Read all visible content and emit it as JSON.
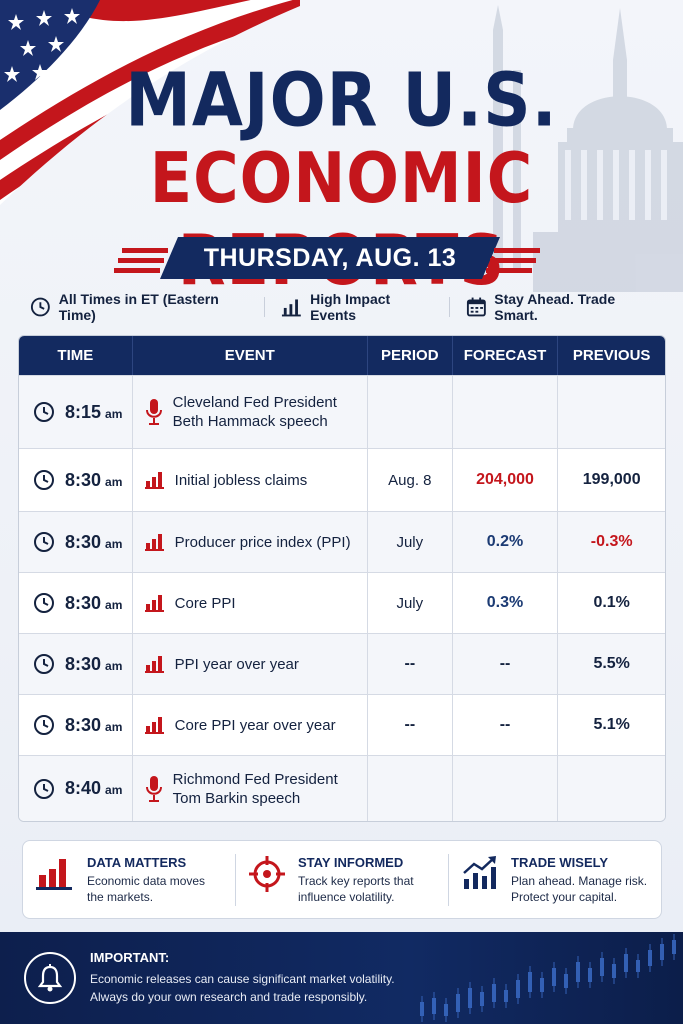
{
  "header": {
    "title_line1": "MAJOR U.S.",
    "title_line2": "ECONOMIC REPORTS",
    "date": "THURSDAY, AUG. 13"
  },
  "info_bar": [
    {
      "icon": "clock-icon",
      "label": "All Times in ET (Eastern Time)"
    },
    {
      "icon": "bar-chart-icon",
      "label": "High Impact Events"
    },
    {
      "icon": "calendar-icon",
      "label": "Stay Ahead. Trade Smart."
    }
  ],
  "table": {
    "headers": [
      "TIME",
      "EVENT",
      "PERIOD",
      "FORECAST",
      "PREVIOUS"
    ],
    "rows": [
      {
        "time": "8:15",
        "ampm": "am",
        "icon": "microphone-icon",
        "event_line1": "Cleveland Fed President",
        "event_line2": "Beth Hammack speech",
        "period": "",
        "forecast": "",
        "previous": ""
      },
      {
        "time": "8:30",
        "ampm": "am",
        "icon": "bar-chart-icon",
        "event_line1": "Initial jobless claims",
        "event_line2": "",
        "period": "Aug. 8",
        "forecast": "204,000",
        "previous": "199,000"
      },
      {
        "time": "8:30",
        "ampm": "am",
        "icon": "bar-chart-icon",
        "event_line1": "Producer price index (PPI)",
        "event_line2": "",
        "period": "July",
        "forecast": "0.2%",
        "previous": "-0.3%"
      },
      {
        "time": "8:30",
        "ampm": "am",
        "icon": "bar-chart-icon",
        "event_line1": "Core PPI",
        "event_line2": "",
        "period": "July",
        "forecast": "0.3%",
        "previous": "0.1%"
      },
      {
        "time": "8:30",
        "ampm": "am",
        "icon": "bar-chart-icon",
        "event_line1": "PPI year over year",
        "event_line2": "",
        "period": "--",
        "forecast": "--",
        "previous": "5.5%"
      },
      {
        "time": "8:30",
        "ampm": "am",
        "icon": "bar-chart-icon",
        "event_line1": "Core PPI year over year",
        "event_line2": "",
        "period": "--",
        "forecast": "--",
        "previous": "5.1%"
      },
      {
        "time": "8:40",
        "ampm": "am",
        "icon": "microphone-icon",
        "event_line1": "Richmond Fed President",
        "event_line2": "Tom Barkin speech",
        "period": "",
        "forecast": "",
        "previous": ""
      }
    ]
  },
  "cards": [
    {
      "icon": "bar-chart-icon",
      "title": "DATA MATTERS",
      "line1": "Economic data moves",
      "line2": "the markets."
    },
    {
      "icon": "target-icon",
      "title": "STAY INFORMED",
      "line1": "Track key reports that",
      "line2": "influence volatility."
    },
    {
      "icon": "trend-up-icon",
      "title": "TRADE WISELY",
      "line1": "Plan ahead. Manage risk.",
      "line2": "Protect your capital."
    }
  ],
  "footer": {
    "icon": "bell-icon",
    "title": "IMPORTANT:",
    "line1": "Economic releases can cause significant market volatility.",
    "line2": "Always do your own research and trade responsibly."
  },
  "colors": {
    "navy": "#132a60",
    "red": "#c4161c",
    "footer_bg": "#0d1f4d"
  }
}
